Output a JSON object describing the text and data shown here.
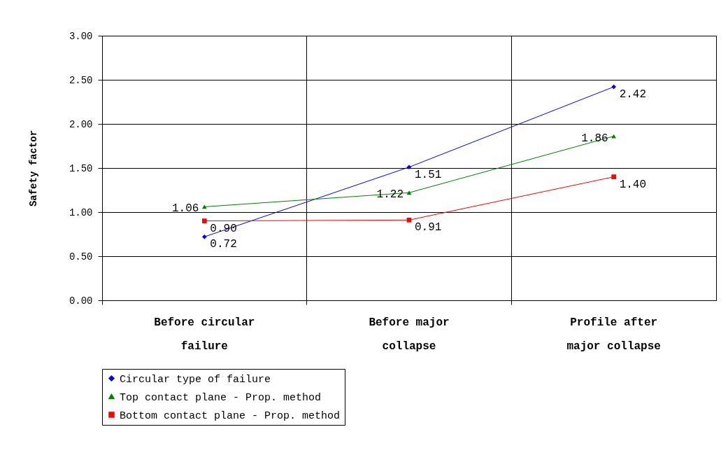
{
  "chart_data": {
    "type": "line",
    "ylabel": "Safety factor",
    "categories": [
      "Before circular failure",
      "Before major collapse",
      "Profile after major collapse"
    ],
    "series": [
      {
        "name": "Circular type of failure",
        "color": "#0000ff",
        "marker": "diamond",
        "values": [
          0.72,
          1.51,
          2.42
        ],
        "value_labels": [
          "0.72",
          "1.51",
          "2.42"
        ]
      },
      {
        "name": "Top contact plane - Prop. method",
        "color": "#008000",
        "marker": "triangle",
        "values": [
          1.06,
          1.22,
          1.86
        ],
        "value_labels": [
          "1.06",
          "1.22",
          "1.86"
        ]
      },
      {
        "name": "Bottom contact plane - Prop. method",
        "color": "#ff0000",
        "marker": "square",
        "values": [
          0.9,
          0.91,
          1.4
        ],
        "value_labels": [
          "0.90",
          "0.91",
          "1.40"
        ]
      }
    ],
    "ylim": [
      0,
      3
    ],
    "yticks": [
      {
        "value": 0,
        "label": "0.00"
      },
      {
        "value": 0.5,
        "label": "0.50"
      },
      {
        "value": 1,
        "label": "1.00"
      },
      {
        "value": 1.5,
        "label": "1.50"
      },
      {
        "value": 2,
        "label": "2.00"
      },
      {
        "value": 2.5,
        "label": "2.50"
      },
      {
        "value": 3,
        "label": "3.00"
      }
    ],
    "grid": true,
    "legend": "bottom"
  }
}
